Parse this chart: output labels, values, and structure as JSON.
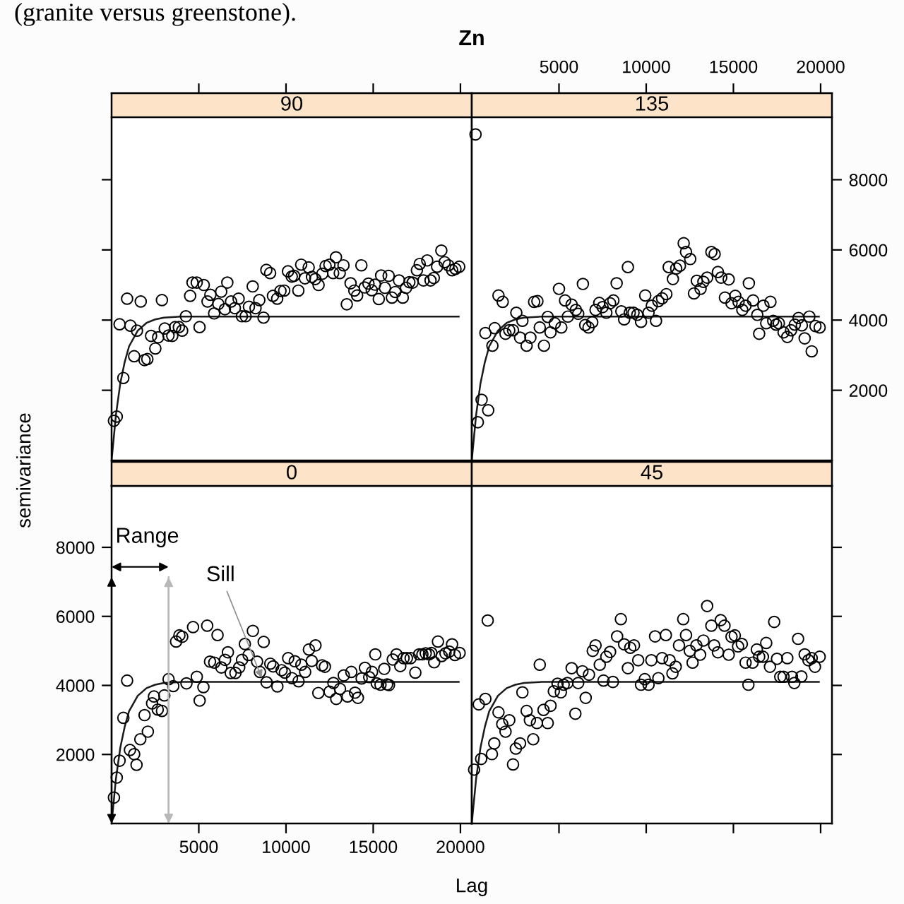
{
  "chart_data": [
    {
      "type": "scatter",
      "title": "90",
      "subtitle": "Zn",
      "annotations": [
        "(granite versus greenstone)."
      ],
      "tick_labels": false,
      "xlim": [
        0,
        20650
      ],
      "ylim": [
        0,
        9780
      ],
      "xticks": [
        5000,
        10000,
        15000,
        20000
      ],
      "yticks": [
        2000,
        4000,
        6000,
        8000
      ],
      "series": [
        {
          "marker": "circle",
          "color": "#000000",
          "x": [
            135,
            297,
            458,
            674,
            890,
            1079,
            1295,
            1456,
            1672,
            1888,
            2050,
            2265,
            2508,
            2670,
            2886,
            3048,
            3263,
            3479,
            3641,
            3857,
            4046,
            4261,
            4504,
            4639,
            4882,
            5043,
            5286,
            5502,
            5664,
            5879,
            6122,
            6284,
            6500,
            6635,
            6850,
            7066,
            7282,
            7471,
            7686,
            7875,
            8091,
            8253,
            8469,
            8711,
            8873,
            9089,
            9251,
            9493,
            9682,
            9898,
            10114,
            10330,
            10464,
            10707,
            10869,
            11085,
            11300,
            11489,
            11678,
            11867,
            12083,
            12271,
            12487,
            12703,
            12865,
            13080,
            13296,
            13485,
            13701,
            13917,
            14078,
            14321,
            14510,
            14726,
            14914,
            15103,
            15319,
            15454,
            15670,
            15885,
            16074,
            16263,
            16479,
            16694,
            16883,
            17072,
            17261,
            17504,
            17665,
            17881,
            18097,
            18286,
            18474,
            18663,
            18906,
            19095,
            19311,
            19526,
            19715,
            19931
          ],
          "values": [
            1130,
            1250,
            3880,
            2350,
            4610,
            3840,
            2970,
            3700,
            4530,
            2860,
            2890,
            3550,
            3190,
            3510,
            4570,
            3760,
            3560,
            3550,
            3800,
            3800,
            3700,
            4110,
            4690,
            5070,
            5070,
            3800,
            5000,
            4530,
            4720,
            4190,
            4460,
            4810,
            4310,
            5070,
            4530,
            4340,
            4610,
            4110,
            4110,
            4380,
            4960,
            4340,
            4570,
            4070,
            5430,
            5340,
            4690,
            4610,
            4830,
            4840,
            5390,
            5240,
            5260,
            4840,
            5580,
            5190,
            5500,
            5230,
            5170,
            5000,
            5320,
            5540,
            5580,
            5340,
            5790,
            5340,
            5560,
            4450,
            5050,
            4840,
            4700,
            5560,
            4930,
            5040,
            4850,
            5010,
            4600,
            5270,
            4920,
            5260,
            4640,
            4800,
            5130,
            4640,
            4920,
            5080,
            5070,
            5420,
            5600,
            5130,
            5700,
            5130,
            5200,
            5520,
            5980,
            5650,
            5560,
            5420,
            5460,
            5520
          ]
        },
        {
          "type": "line",
          "color": "#1a1a1a",
          "x": [
            0,
            250,
            500,
            750,
            1000,
            1500,
            2000,
            2500,
            3000,
            4000,
            19900
          ],
          "values": [
            0,
            1300,
            2200,
            2800,
            3250,
            3700,
            3920,
            4020,
            4070,
            4100,
            4100
          ]
        }
      ]
    },
    {
      "type": "scatter",
      "title": "135",
      "xlim": [
        0,
        20650
      ],
      "ylim": [
        0,
        9780
      ],
      "xticks": [
        5000,
        10000,
        15000,
        20000
      ],
      "yticks": [
        2000,
        4000,
        6000,
        8000
      ],
      "series": [
        {
          "marker": "circle",
          "color": "#000000",
          "x": [
            215,
            349,
            564,
            941,
            780,
            1183,
            1317,
            1532,
            1774,
            1935,
            2150,
            2365,
            2554,
            2769,
            2903,
            3145,
            3360,
            3575,
            3763,
            3898,
            4140,
            4355,
            4516,
            4758,
            5000,
            5134,
            5349,
            5510,
            5725,
            5967,
            6102,
            6371,
            6505,
            6693,
            6908,
            7096,
            7311,
            7500,
            7715,
            7930,
            8118,
            8306,
            8575,
            8736,
            8951,
            9059,
            9274,
            9489,
            9704,
            9946,
            10134,
            10322,
            10564,
            10698,
            10913,
            11155,
            11290,
            11532,
            11720,
            11935,
            12150,
            12284,
            12526,
            12741,
            12902,
            13117,
            13279,
            13494,
            13736,
            13924,
            14112,
            14300,
            14515,
            14730,
            14892,
            15107,
            15295,
            15510,
            15698,
            15886,
            16128,
            16370,
            16477,
            16719,
            16881,
            17123,
            17284,
            17445,
            17606,
            17875,
            18090,
            18305,
            18520,
            18735,
            18924,
            19085,
            19354,
            19488,
            19703,
            19945
          ],
          "values": [
            9290,
            1090,
            1730,
            1430,
            3630,
            3270,
            3770,
            4700,
            4520,
            3610,
            3710,
            3710,
            4210,
            3500,
            3980,
            3270,
            3500,
            4520,
            4540,
            3790,
            3270,
            4090,
            3650,
            3910,
            4890,
            3790,
            4560,
            4100,
            4440,
            4290,
            4180,
            5030,
            3860,
            3790,
            3940,
            4290,
            4490,
            4370,
            4210,
            4480,
            4560,
            5050,
            4250,
            4020,
            5510,
            4210,
            4210,
            4150,
            3950,
            4700,
            4210,
            4410,
            3980,
            4540,
            4620,
            4740,
            5510,
            5170,
            5470,
            5550,
            6190,
            5940,
            5740,
            4760,
            5120,
            4890,
            5090,
            5210,
            5940,
            5880,
            5370,
            5210,
            4640,
            5160,
            4480,
            4690,
            4520,
            4290,
            4410,
            5050,
            4560,
            4150,
            3610,
            4410,
            3910,
            4520,
            3980,
            3870,
            3910,
            3650,
            3520,
            3710,
            3870,
            4060,
            3850,
            3480,
            4100,
            3110,
            3830,
            3790
          ]
        },
        {
          "type": "line",
          "color": "#1a1a1a",
          "x": [
            0,
            250,
            500,
            750,
            1000,
            1500,
            2000,
            2500,
            3000,
            4000,
            19900
          ],
          "values": [
            0,
            1300,
            2200,
            2800,
            3250,
            3700,
            3920,
            4020,
            4070,
            4100,
            4100
          ]
        }
      ]
    },
    {
      "type": "scatter",
      "title": "0",
      "xlabel": "Lag",
      "ylabel": "semivariance",
      "annotations": [
        {
          "text": "Sill",
          "x": 8610,
          "y": 4220
        }
      ],
      "ref_lines": [
        {
          "axis": "x",
          "value": 3270,
          "label": "Range",
          "color": "#b8b8b8"
        }
      ],
      "xlim": [
        0,
        20650
      ],
      "ylim": [
        0,
        9780
      ],
      "xticks": [
        5000,
        10000,
        15000,
        20000
      ],
      "yticks": [
        2000,
        4000,
        6000,
        8000
      ],
      "series": [
        {
          "marker": "circle",
          "color": "#000000",
          "x": [
            135,
            297,
            459,
            675,
            891,
            1053,
            1296,
            1431,
            1647,
            1890,
            2079,
            2322,
            2430,
            2646,
            2889,
            3024,
            3267,
            3537,
            3699,
            3888,
            4050,
            4293,
            4671,
            4887,
            5049,
            5265,
            5481,
            5643,
            5886,
            6075,
            6291,
            6507,
            6669,
            6831,
            7101,
            7317,
            7479,
            7641,
            7857,
            8100,
            8343,
            8505,
            8721,
            8883,
            9099,
            9261,
            9504,
            9747,
            9936,
            10125,
            10341,
            10503,
            10719,
            10881,
            11097,
            11313,
            11475,
            11691,
            11853,
            12069,
            12231,
            12501,
            12717,
            12879,
            13095,
            13311,
            13527,
            13743,
            13959,
            14121,
            14337,
            14526,
            14769,
            14931,
            15120,
            15201,
            15417,
            15633,
            15795,
            15903,
            16119,
            16335,
            16551,
            16740,
            16929,
            17145,
            17415,
            17631,
            17820,
            18009,
            18198,
            18333,
            18495,
            18711,
            18927,
            19143,
            19359,
            19521,
            19683,
            19953
          ],
          "values": [
            750,
            1330,
            1820,
            3060,
            4140,
            2130,
            2010,
            1700,
            2440,
            3140,
            2660,
            3480,
            3680,
            3300,
            3260,
            3710,
            4180,
            3980,
            5270,
            5450,
            5410,
            4060,
            5690,
            4250,
            3560,
            3950,
            5730,
            4690,
            4660,
            5460,
            4520,
            4740,
            4960,
            4360,
            4360,
            4520,
            4740,
            5200,
            4880,
            5580,
            4690,
            4390,
            5260,
            4090,
            4630,
            4550,
            3970,
            4440,
            4370,
            4790,
            4210,
            4700,
            4120,
            4600,
            4390,
            5040,
            4710,
            5160,
            3780,
            4580,
            4540,
            3820,
            4070,
            3610,
            3900,
            4290,
            3680,
            4390,
            3790,
            3640,
            4200,
            4510,
            4240,
            4390,
            4900,
            4060,
            4020,
            4480,
            4030,
            4010,
            4750,
            4900,
            4560,
            4790,
            4790,
            4790,
            4370,
            4900,
            4900,
            4930,
            4900,
            4940,
            4670,
            5270,
            4850,
            4930,
            4980,
            5190,
            4880,
            4940
          ]
        },
        {
          "type": "line",
          "color": "#1a1a1a",
          "x": [
            0,
            250,
            500,
            750,
            1000,
            1500,
            2000,
            2500,
            3000,
            4000,
            19900
          ],
          "values": [
            0,
            1300,
            2200,
            2800,
            3250,
            3700,
            3920,
            4020,
            4070,
            4100,
            4100
          ]
        }
      ]
    },
    {
      "type": "scatter",
      "title": "45",
      "tick_labels": false,
      "xlim": [
        0,
        20650
      ],
      "ylim": [
        0,
        9780
      ],
      "xticks": [
        5000,
        10000,
        15000,
        20000
      ],
      "yticks": [
        2000,
        4000,
        6000,
        8000
      ],
      "series": [
        {
          "marker": "circle",
          "color": "#000000",
          "x": [
            134,
            403,
            538,
            780,
            914,
            1156,
            1290,
            1532,
            1747,
            1935,
            2150,
            2365,
            2527,
            2769,
            2903,
            3145,
            3333,
            3521,
            3736,
            3898,
            4113,
            4355,
            4516,
            4704,
            4919,
            5107,
            5268,
            5484,
            5725,
            5940,
            6102,
            6344,
            6532,
            6720,
            6935,
            7096,
            7338,
            7553,
            7715,
            7930,
            8091,
            8333,
            8548,
            8736,
            8951,
            9085,
            9300,
            9542,
            9704,
            9919,
            10134,
            10295,
            10510,
            10698,
            10913,
            11128,
            11343,
            11505,
            11693,
            11881,
            12123,
            12284,
            12499,
            12660,
            12876,
            13091,
            13279,
            13494,
            13736,
            13897,
            14112,
            14273,
            14488,
            14730,
            14892,
            15080,
            15268,
            15483,
            15698,
            15859,
            16101,
            16343,
            16477,
            16692,
            16881,
            17096,
            17338,
            17499,
            17687,
            17875,
            18090,
            18359,
            18493,
            18708,
            18897,
            19085,
            19300,
            19488,
            19676,
            19945
          ],
          "values": [
            1560,
            3450,
            1870,
            3610,
            5880,
            2010,
            2320,
            3220,
            2880,
            2660,
            2990,
            1710,
            2170,
            2320,
            3800,
            3260,
            2990,
            2440,
            2910,
            4600,
            3290,
            2910,
            3410,
            3830,
            4050,
            3800,
            4020,
            4070,
            4500,
            3180,
            4070,
            4410,
            3640,
            4310,
            5000,
            5160,
            4600,
            4140,
            4830,
            4970,
            4100,
            5420,
            5920,
            5190,
            4500,
            5090,
            5160,
            4730,
            4020,
            4180,
            4020,
            4730,
            5420,
            4210,
            4790,
            5460,
            4730,
            4350,
            4540,
            5160,
            5920,
            5460,
            5000,
            4660,
            5160,
            4890,
            5300,
            6300,
            5730,
            5160,
            4960,
            5890,
            5730,
            4890,
            5410,
            5450,
            5130,
            5200,
            4660,
            4020,
            4660,
            5040,
            4830,
            4830,
            5230,
            4540,
            5840,
            4770,
            4250,
            4250,
            4790,
            4250,
            4070,
            5350,
            4260,
            4900,
            4730,
            4790,
            4540,
            4830
          ]
        },
        {
          "type": "line",
          "color": "#1a1a1a",
          "x": [
            0,
            250,
            500,
            750,
            1000,
            1500,
            2000,
            2500,
            3000,
            4000,
            19900
          ],
          "values": [
            0,
            1300,
            2200,
            2800,
            3250,
            3700,
            3920,
            4020,
            4070,
            4100,
            4100
          ]
        }
      ]
    }
  ]
}
